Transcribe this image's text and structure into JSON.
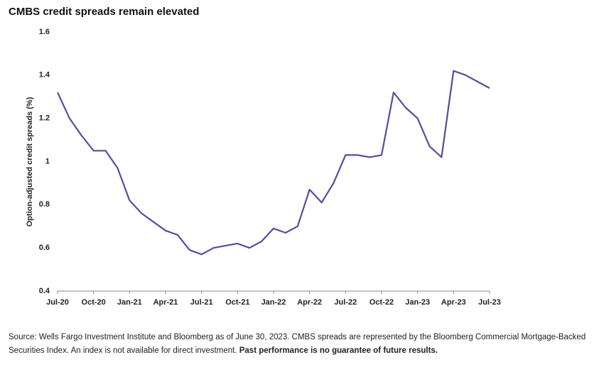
{
  "chart_data": {
    "type": "line",
    "title": "CMBS credit spreads remain elevated",
    "y_label": "Option-adjusted credit spreads (%)",
    "categories": [
      "Jul-20",
      null,
      null,
      "Oct-20",
      null,
      null,
      "Jan-21",
      null,
      null,
      "Apr-21",
      null,
      null,
      "Jul-21",
      null,
      null,
      "Oct-21",
      null,
      null,
      "Jan-22",
      null,
      null,
      "Apr-22",
      null,
      null,
      "Jul-22",
      null,
      null,
      "Oct-22",
      null,
      null,
      "Jan-23",
      null,
      null,
      "Apr-23",
      null,
      null,
      "Jul-23"
    ],
    "values": [
      1.32,
      1.2,
      1.12,
      1.05,
      1.05,
      0.97,
      0.82,
      0.76,
      0.72,
      0.68,
      0.66,
      0.59,
      0.57,
      0.6,
      0.61,
      0.62,
      0.6,
      0.63,
      0.69,
      0.67,
      0.7,
      0.87,
      0.81,
      0.9,
      1.03,
      1.03,
      1.02,
      1.03,
      1.32,
      1.25,
      1.2,
      1.07,
      1.02,
      1.42,
      1.4,
      1.37,
      1.34
    ],
    "color": "#5b4a9e",
    "ylim": [
      0.4,
      1.6
    ],
    "yticks": [
      0.4,
      0.6,
      0.8,
      1,
      1.2,
      1.4,
      1.6
    ],
    "grid": false,
    "footnote": {
      "source": "Source: Wells Fargo Investment Institute and Bloomberg as of June 30, 2023. CMBS spreads are represented by the Bloomberg Commercial Mortgage-Backed Securities Index. An index is not available for direct investment. ",
      "disclaimer": "Past performance is no guarantee of future results."
    }
  }
}
